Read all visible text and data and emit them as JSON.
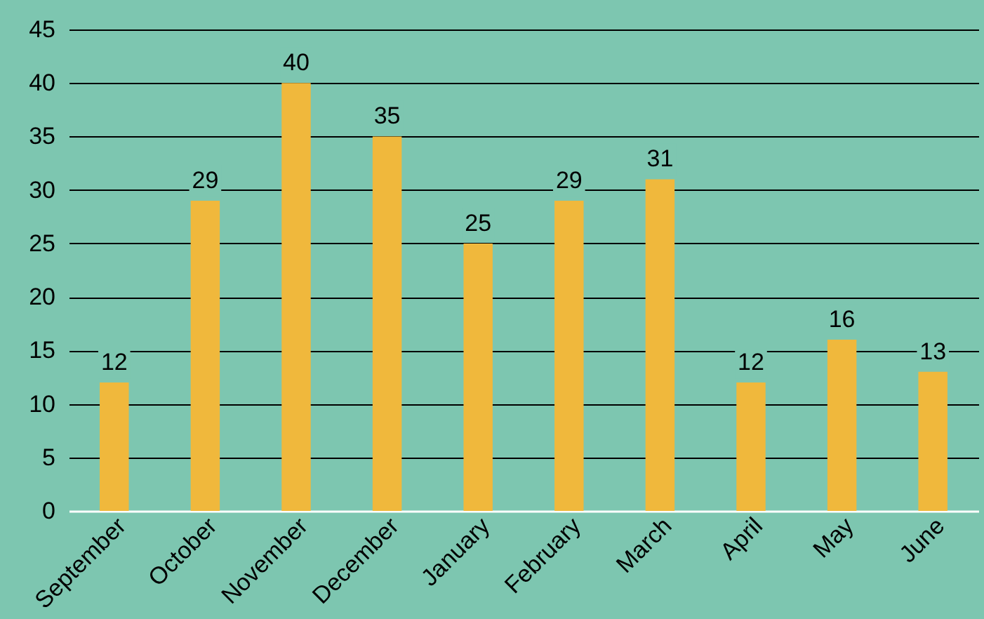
{
  "chart_data": {
    "type": "bar",
    "categories": [
      "September",
      "October",
      "November",
      "December",
      "January",
      "February",
      "March",
      "April",
      "May",
      "June"
    ],
    "values": [
      12,
      29,
      40,
      35,
      25,
      29,
      31,
      12,
      16,
      13
    ],
    "color": "#f0b83c",
    "ylim": [
      0,
      45
    ],
    "yticks": [
      0,
      5,
      10,
      15,
      20,
      25,
      30,
      35,
      40,
      45
    ],
    "grid": "y",
    "data_labels": true
  }
}
